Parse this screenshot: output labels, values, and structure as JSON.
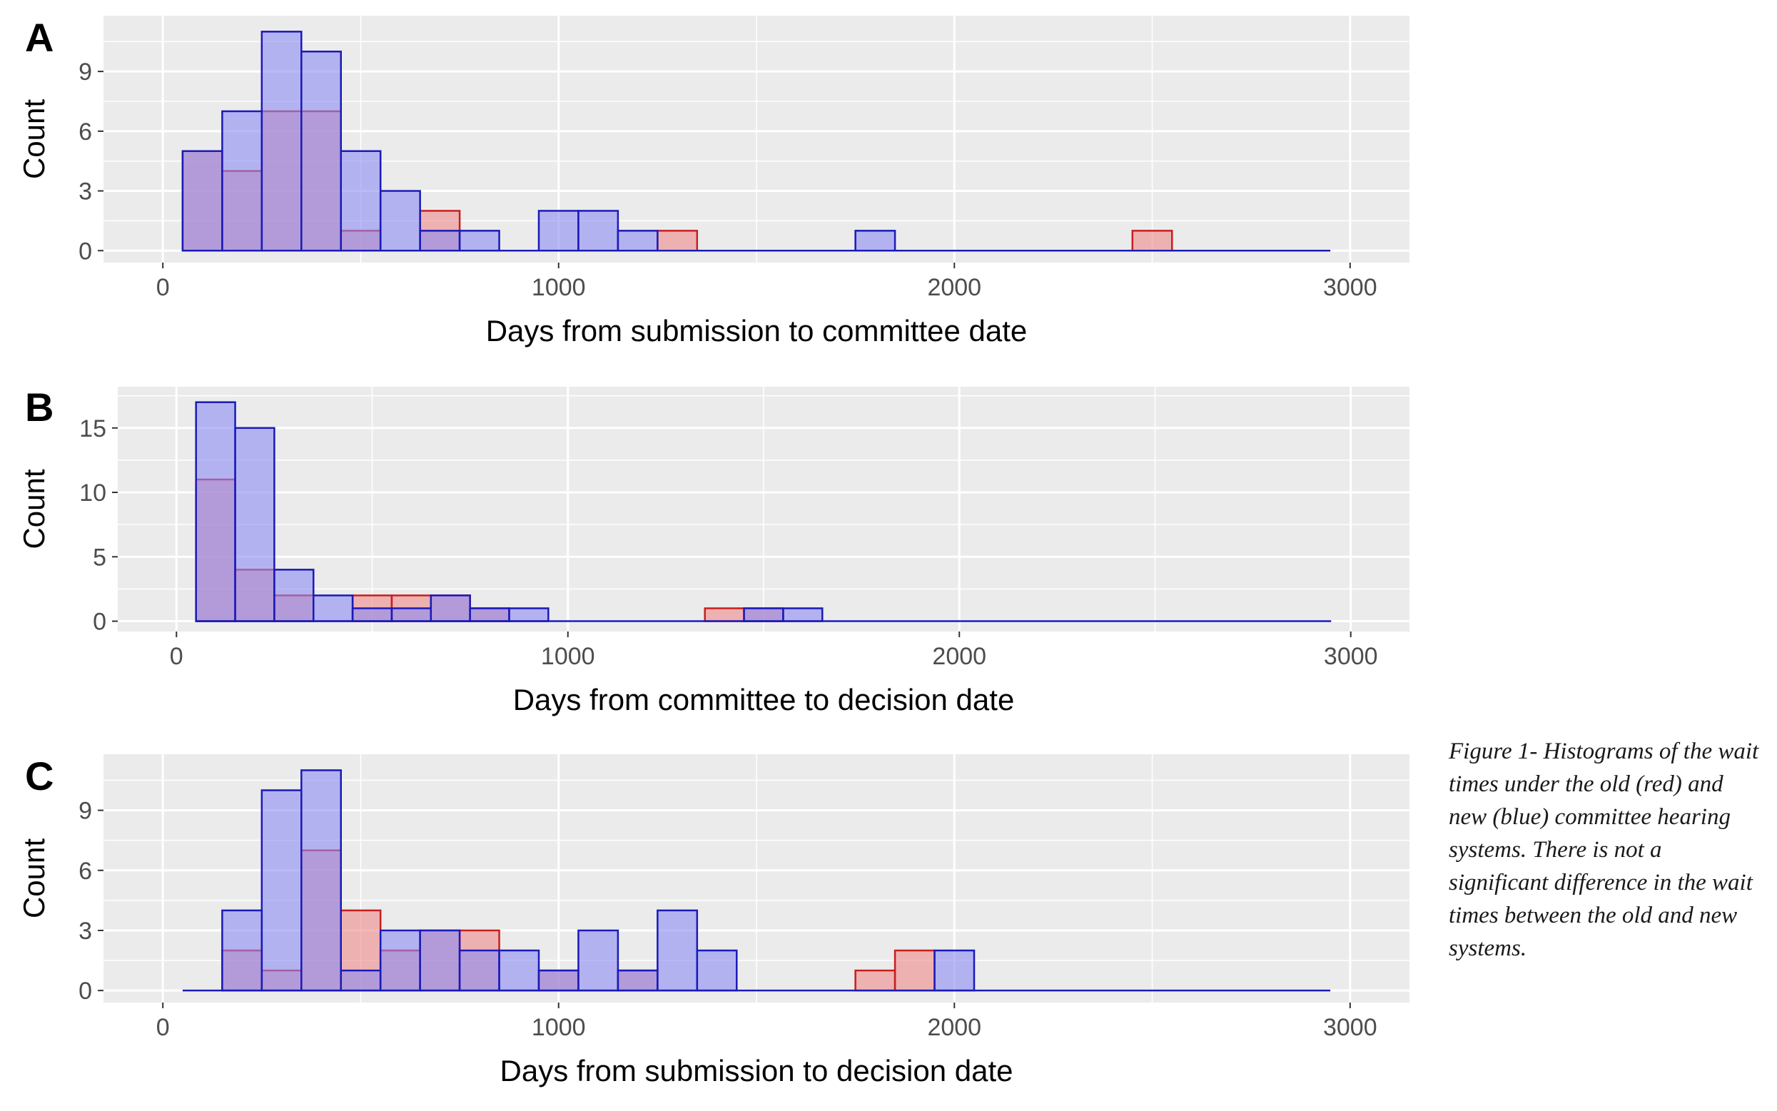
{
  "caption": "Figure 1- Histograms of the wait times under the old (red) and new (blue) committee hearing systems. There is not a significant difference in the wait times between the old and new systems.",
  "colors": {
    "panel_bg": "#ebebeb",
    "grid": "#ffffff",
    "new_fill": "#b3b3f5",
    "new_stroke": "#1a1ab8",
    "old_fill": "#f0b8b8",
    "old_stroke": "#c81e1e",
    "overlap_fill": "#a98fcc"
  },
  "chart_data": [
    {
      "type": "bar",
      "panel": "A",
      "xlabel": "Days from submission to committee date",
      "ylabel": "Count",
      "xlim": [
        -150,
        3150
      ],
      "ylim": [
        -0.6,
        11.8
      ],
      "xticks": [
        0,
        1000,
        2000,
        3000
      ],
      "yticks": [
        0,
        3,
        6,
        9
      ],
      "bin_start": 50,
      "bin_width": 100,
      "old": [
        5,
        4,
        7,
        7,
        1,
        0,
        2,
        0,
        0,
        0,
        0,
        0,
        1,
        0,
        0,
        0,
        0,
        0,
        0,
        0,
        0,
        0,
        0,
        0,
        1,
        0,
        0,
        0,
        0
      ],
      "new": [
        5,
        7,
        11,
        10,
        5,
        3,
        1,
        1,
        0,
        2,
        2,
        1,
        0,
        0,
        0,
        0,
        0,
        1,
        0,
        0,
        0,
        0,
        0,
        0,
        0,
        0,
        0,
        0,
        0
      ]
    },
    {
      "type": "bar",
      "panel": "B",
      "xlabel": "Days from committee to decision date",
      "ylabel": "Count",
      "xlim": [
        -150,
        3150
      ],
      "ylim": [
        -0.8,
        18.2
      ],
      "xticks": [
        0,
        1000,
        2000,
        3000
      ],
      "yticks": [
        0,
        5,
        10,
        15
      ],
      "bin_start": 50,
      "bin_width": 100,
      "old": [
        11,
        4,
        2,
        0,
        2,
        2,
        2,
        1,
        0,
        0,
        0,
        0,
        0,
        1,
        1,
        0,
        0,
        0,
        0,
        0,
        0,
        0,
        0,
        0,
        0,
        0,
        0,
        0,
        0
      ],
      "new": [
        17,
        15,
        4,
        2,
        1,
        1,
        2,
        1,
        1,
        0,
        0,
        0,
        0,
        0,
        1,
        1,
        0,
        0,
        0,
        0,
        0,
        0,
        0,
        0,
        0,
        0,
        0,
        0,
        0
      ]
    },
    {
      "type": "bar",
      "panel": "C",
      "xlabel": "Days from submission to decision date",
      "ylabel": "Count",
      "xlim": [
        -150,
        3150
      ],
      "ylim": [
        -0.6,
        11.8
      ],
      "xticks": [
        0,
        1000,
        2000,
        3000
      ],
      "yticks": [
        0,
        3,
        6,
        9
      ],
      "bin_start": 50,
      "bin_width": 100,
      "old": [
        0,
        2,
        1,
        7,
        4,
        2,
        3,
        3,
        0,
        1,
        0,
        1,
        0,
        0,
        0,
        0,
        0,
        1,
        2,
        0,
        0,
        0,
        0,
        0,
        0,
        0,
        0,
        0,
        0
      ],
      "new": [
        0,
        4,
        10,
        11,
        1,
        3,
        3,
        2,
        2,
        1,
        3,
        1,
        4,
        2,
        0,
        0,
        0,
        0,
        0,
        2,
        0,
        0,
        0,
        0,
        0,
        0,
        0,
        0,
        0
      ]
    }
  ]
}
